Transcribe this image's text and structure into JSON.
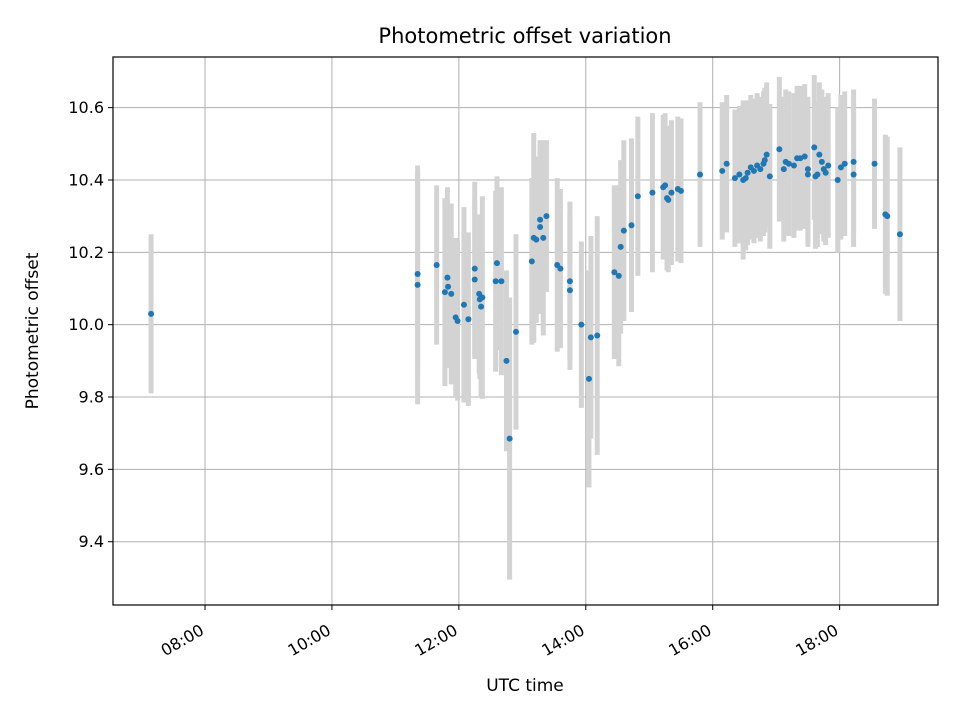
{
  "chart_data": {
    "type": "scatter",
    "title": "Photometric offset variation",
    "xlabel": "UTC time",
    "ylabel": "Photometric offset",
    "x_unit": "hours UTC",
    "xlim": [
      6.55,
      19.55
    ],
    "ylim": [
      9.225,
      10.74
    ],
    "grid": true,
    "x_ticks": [
      {
        "value": 8,
        "label": "08:00"
      },
      {
        "value": 10,
        "label": "10:00"
      },
      {
        "value": 12,
        "label": "12:00"
      },
      {
        "value": 14,
        "label": "14:00"
      },
      {
        "value": 16,
        "label": "16:00"
      },
      {
        "value": 18,
        "label": "18:00"
      }
    ],
    "y_ticks": [
      {
        "value": 9.4,
        "label": "9.4"
      },
      {
        "value": 9.6,
        "label": "9.6"
      },
      {
        "value": 9.8,
        "label": "9.8"
      },
      {
        "value": 10.0,
        "label": "10.0"
      },
      {
        "value": 10.2,
        "label": "10.2"
      },
      {
        "value": 10.4,
        "label": "10.4"
      },
      {
        "value": 10.6,
        "label": "10.6"
      }
    ],
    "colors": {
      "point": "#1f77b4",
      "errorbar": "#d3d3d3",
      "grid": "#b0b0b0"
    },
    "points": [
      [
        7.15,
        10.03,
        0.22
      ],
      [
        11.35,
        10.14,
        0.28
      ],
      [
        11.35,
        10.11,
        0.33
      ],
      [
        11.65,
        10.165,
        0.22
      ],
      [
        11.78,
        10.09,
        0.26
      ],
      [
        11.82,
        10.13,
        0.25
      ],
      [
        11.83,
        10.105,
        0.22
      ],
      [
        11.88,
        10.085,
        0.25
      ],
      [
        11.95,
        10.02,
        0.22
      ],
      [
        11.98,
        10.01,
        0.22
      ],
      [
        12.08,
        10.055,
        0.27
      ],
      [
        12.15,
        10.015,
        0.24
      ],
      [
        12.25,
        10.155,
        0.24
      ],
      [
        12.25,
        10.125,
        0.22
      ],
      [
        12.32,
        10.085,
        0.22
      ],
      [
        12.33,
        10.07,
        0.22
      ],
      [
        12.35,
        10.05,
        0.25
      ],
      [
        12.37,
        10.075,
        0.28
      ],
      [
        12.58,
        10.12,
        0.25
      ],
      [
        12.6,
        10.17,
        0.24
      ],
      [
        12.67,
        10.12,
        0.26
      ],
      [
        12.75,
        9.9,
        0.25
      ],
      [
        12.8,
        9.685,
        0.39
      ],
      [
        12.9,
        9.98,
        0.27
      ],
      [
        13.15,
        10.175,
        0.23
      ],
      [
        13.18,
        10.24,
        0.29
      ],
      [
        13.22,
        10.235,
        0.23
      ],
      [
        13.28,
        10.27,
        0.24
      ],
      [
        13.28,
        10.29,
        0.21
      ],
      [
        13.33,
        10.24,
        0.27
      ],
      [
        13.38,
        10.3,
        0.21
      ],
      [
        13.55,
        10.165,
        0.24
      ],
      [
        13.6,
        10.155,
        0.22
      ],
      [
        13.75,
        10.095,
        0.22
      ],
      [
        13.75,
        10.12,
        0.22
      ],
      [
        13.93,
        10.0,
        0.23
      ],
      [
        14.05,
        9.85,
        0.3
      ],
      [
        14.08,
        9.965,
        0.28
      ],
      [
        14.18,
        9.97,
        0.33
      ],
      [
        14.45,
        10.145,
        0.24
      ],
      [
        14.52,
        10.135,
        0.25
      ],
      [
        14.55,
        10.215,
        0.24
      ],
      [
        14.6,
        10.26,
        0.25
      ],
      [
        14.72,
        10.275,
        0.24
      ],
      [
        14.82,
        10.355,
        0.22
      ],
      [
        15.05,
        10.365,
        0.22
      ],
      [
        15.22,
        10.38,
        0.2
      ],
      [
        15.25,
        10.385,
        0.2
      ],
      [
        15.28,
        10.35,
        0.2
      ],
      [
        15.3,
        10.345,
        0.2
      ],
      [
        15.35,
        10.365,
        0.2
      ],
      [
        15.45,
        10.375,
        0.2
      ],
      [
        15.5,
        10.37,
        0.2
      ],
      [
        15.8,
        10.415,
        0.2
      ],
      [
        16.15,
        10.425,
        0.19
      ],
      [
        16.22,
        10.445,
        0.19
      ],
      [
        16.35,
        10.405,
        0.19
      ],
      [
        16.42,
        10.415,
        0.19
      ],
      [
        16.48,
        10.4,
        0.22
      ],
      [
        16.52,
        10.405,
        0.2
      ],
      [
        16.55,
        10.42,
        0.2
      ],
      [
        16.6,
        10.435,
        0.2
      ],
      [
        16.65,
        10.425,
        0.2
      ],
      [
        16.7,
        10.44,
        0.2
      ],
      [
        16.75,
        10.43,
        0.2
      ],
      [
        16.8,
        10.445,
        0.2
      ],
      [
        16.82,
        10.455,
        0.2
      ],
      [
        16.85,
        10.47,
        0.2
      ],
      [
        16.9,
        10.41,
        0.2
      ],
      [
        17.05,
        10.485,
        0.2
      ],
      [
        17.12,
        10.43,
        0.2
      ],
      [
        17.15,
        10.45,
        0.2
      ],
      [
        17.2,
        10.445,
        0.2
      ],
      [
        17.28,
        10.44,
        0.2
      ],
      [
        17.33,
        10.46,
        0.2
      ],
      [
        17.38,
        10.46,
        0.2
      ],
      [
        17.45,
        10.465,
        0.2
      ],
      [
        17.5,
        10.43,
        0.2
      ],
      [
        17.5,
        10.415,
        0.2
      ],
      [
        17.6,
        10.49,
        0.2
      ],
      [
        17.62,
        10.41,
        0.2
      ],
      [
        17.65,
        10.415,
        0.2
      ],
      [
        17.68,
        10.47,
        0.2
      ],
      [
        17.72,
        10.45,
        0.2
      ],
      [
        17.75,
        10.43,
        0.2
      ],
      [
        17.78,
        10.42,
        0.2
      ],
      [
        17.82,
        10.44,
        0.2
      ],
      [
        17.97,
        10.4,
        0.2
      ],
      [
        18.02,
        10.435,
        0.2
      ],
      [
        18.08,
        10.445,
        0.2
      ],
      [
        18.22,
        10.45,
        0.2
      ],
      [
        18.22,
        10.415,
        0.2
      ],
      [
        18.55,
        10.445,
        0.18
      ],
      [
        18.72,
        10.305,
        0.22
      ],
      [
        18.75,
        10.3,
        0.22
      ],
      [
        18.95,
        10.25,
        0.24
      ]
    ]
  }
}
